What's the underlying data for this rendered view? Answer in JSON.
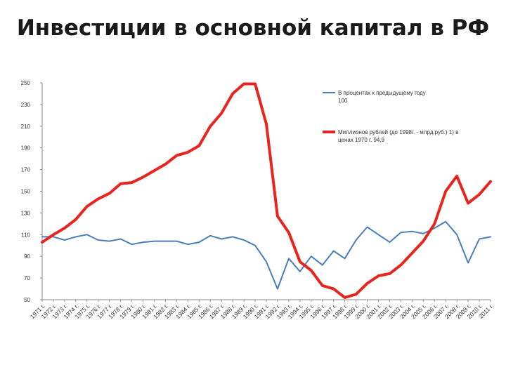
{
  "chart_data": {
    "type": "line",
    "title": "Инвестиции в основной капитал в РФ",
    "xlabel": "",
    "ylabel": "",
    "ylim": [
      50,
      250
    ],
    "yticks": [
      50,
      70,
      90,
      110,
      130,
      150,
      170,
      190,
      210,
      230,
      250
    ],
    "grid": false,
    "legend_position": "top-right",
    "categories": [
      "1971 г.",
      "1972 г.",
      "1973 г.",
      "1974 г.",
      "1975 г.",
      "1976 г.",
      "1977 г.",
      "1978 г.",
      "1979 г.",
      "1980 г.",
      "1981 г.",
      "1982 г.",
      "1983 г.",
      "1984 г.",
      "1985 г.",
      "1986 г.",
      "1987 г.",
      "1988 г.",
      "1989 г.",
      "1990 г.",
      "1991 г.",
      "1992 г.",
      "1993 г.",
      "1994 г.",
      "1995 г.",
      "1996 г.",
      "1997 г.",
      "1998 г.",
      "1999 г.",
      "2000 г.",
      "2001 г.",
      "2002 г.",
      "2003 г.",
      "2004 г.",
      "2005 г.",
      "2006 г.",
      "2007 г.",
      "2008 г.",
      "2009 г.",
      "2010 г.",
      "2011 г."
    ],
    "series": [
      {
        "name": "В процентах к предыдущему году 100",
        "color": "#4a7ebb",
        "width": 2,
        "values": [
          108,
          108,
          105,
          108,
          110,
          105,
          104,
          106,
          101,
          103,
          104,
          104,
          104,
          101,
          103,
          109,
          106,
          108,
          105,
          100,
          85,
          60,
          88,
          76,
          90,
          82,
          95,
          88,
          105,
          117,
          110,
          103,
          112,
          113,
          111,
          116,
          122,
          110,
          84,
          106,
          108
        ]
      },
      {
        "name": "Миллионов рублей (до 1998г. - млрд.руб.) 1) в ценах 1970 г. 94,9",
        "color": "#e8241e",
        "width": 4,
        "values": [
          103,
          110,
          116,
          124,
          136,
          143,
          148,
          157,
          158,
          163,
          169,
          175,
          183,
          186,
          192,
          210,
          222,
          240,
          249,
          249,
          212,
          127,
          112,
          85,
          77,
          63,
          60,
          52,
          55,
          65,
          72,
          74,
          82,
          93,
          104,
          120,
          150,
          164,
          139,
          147,
          159
        ]
      }
    ]
  }
}
